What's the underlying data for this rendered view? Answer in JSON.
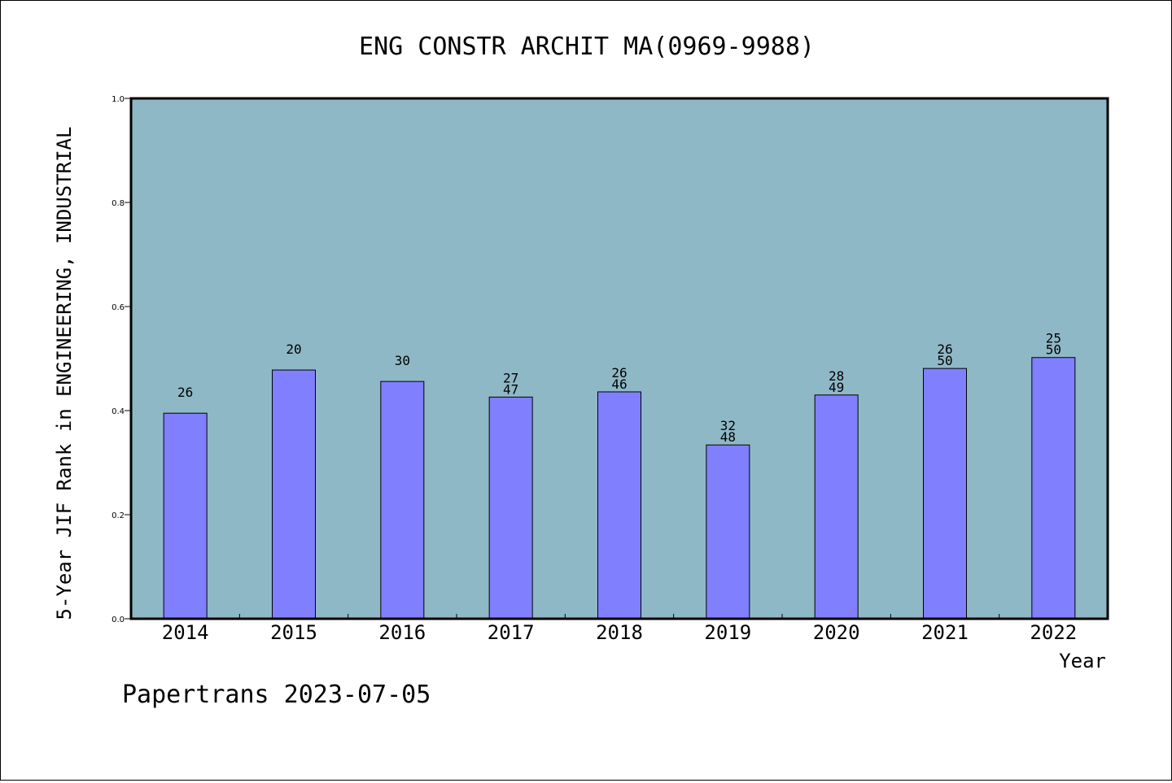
{
  "chart_data": {
    "type": "bar",
    "title": "ENG CONSTR ARCHIT MA(0969-9988)",
    "xlabel": "Year",
    "ylabel": "5-Year JIF Rank in ENGINEERING, INDUSTRIAL",
    "ylim": [
      0,
      1.0
    ],
    "yticks": [
      "0.0",
      "0.2",
      "0.4",
      "0.6",
      "0.8",
      "1.0"
    ],
    "categories": [
      "2014",
      "2015",
      "2016",
      "2017",
      "2018",
      "2019",
      "2020",
      "2021",
      "2022"
    ],
    "values": [
      0.395,
      0.478,
      0.456,
      0.426,
      0.436,
      0.334,
      0.43,
      0.481,
      0.502
    ],
    "labels": [
      [
        "26"
      ],
      [
        "20"
      ],
      [
        "30"
      ],
      [
        "27",
        "47"
      ],
      [
        "26",
        "46"
      ],
      [
        "32",
        "48"
      ],
      [
        "28",
        "49"
      ],
      [
        "26",
        "50"
      ],
      [
        "25",
        "50"
      ]
    ],
    "grid": false,
    "colors": {
      "plot_background": "#8fb8c6",
      "bar_fill": "#8080ff",
      "bar_stroke": "#000000"
    }
  },
  "footer": "Papertrans 2023-07-05"
}
